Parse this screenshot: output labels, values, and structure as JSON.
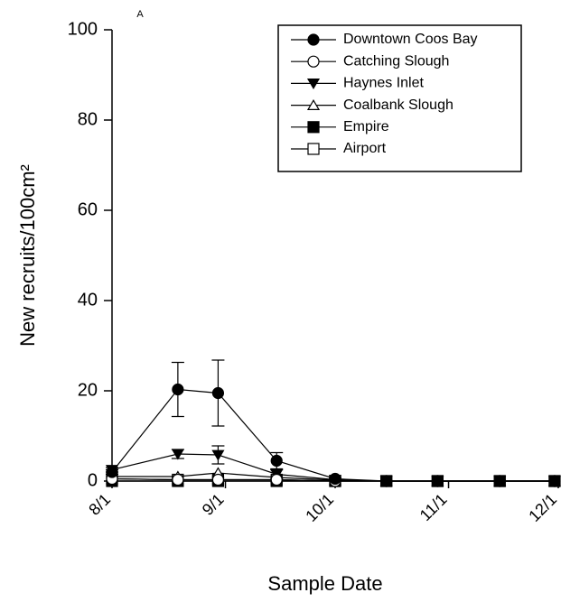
{
  "chart_data": {
    "type": "line",
    "annotation": "A",
    "x_label": "Sample Date",
    "y_label": "New recruits/100cm²",
    "xlim": [
      0,
      122
    ],
    "ylim": [
      0,
      100
    ],
    "xticks": [
      {
        "value": 0,
        "label": "8/1"
      },
      {
        "value": 31,
        "label": "9/1"
      },
      {
        "value": 61,
        "label": "10/1"
      },
      {
        "value": 92,
        "label": "11/1"
      },
      {
        "value": 122,
        "label": "12/1"
      }
    ],
    "yticks": [
      0,
      20,
      40,
      60,
      80,
      100
    ],
    "legend": "upper right",
    "x": [
      0,
      18,
      29,
      45,
      61,
      75,
      89,
      106,
      121
    ],
    "series": [
      {
        "name": "Downtown Coos Bay",
        "color": "#000000",
        "marker": "circle",
        "filled": true,
        "values": [
          2,
          20.3,
          19.5,
          4.5,
          0.5,
          0,
          0,
          0,
          0
        ],
        "errors": [
          0.5,
          6,
          7.3,
          1.8,
          0.3,
          0,
          0,
          0,
          0
        ]
      },
      {
        "name": "Catching Slough",
        "color": "#000000",
        "marker": "circle",
        "filled": false,
        "values": [
          0.5,
          0.3,
          0.3,
          0.3,
          0,
          0,
          0,
          0,
          0
        ]
      },
      {
        "name": "Haynes Inlet",
        "color": "#000000",
        "marker": "triangle-down",
        "filled": true,
        "values": [
          2.5,
          6,
          5.8,
          1.5,
          0.3,
          0,
          0,
          0,
          0
        ],
        "errors": [
          0.5,
          1,
          2,
          1,
          0.2,
          0,
          0,
          0,
          0
        ]
      },
      {
        "name": "Coalbank Slough",
        "color": "#000000",
        "marker": "triangle-up",
        "filled": false,
        "values": [
          1,
          1,
          1.8,
          0.8,
          0.2,
          0,
          0,
          0,
          0
        ]
      },
      {
        "name": "Empire",
        "color": "#000000",
        "marker": "square",
        "filled": true,
        "values": [
          0,
          0,
          0,
          0,
          0,
          0,
          0,
          0,
          0
        ]
      },
      {
        "name": "Airport",
        "color": "#000000",
        "marker": "square",
        "filled": false,
        "values": [
          0.5,
          0.3,
          0.3,
          0.3,
          0,
          0,
          0,
          0,
          0
        ]
      }
    ]
  }
}
